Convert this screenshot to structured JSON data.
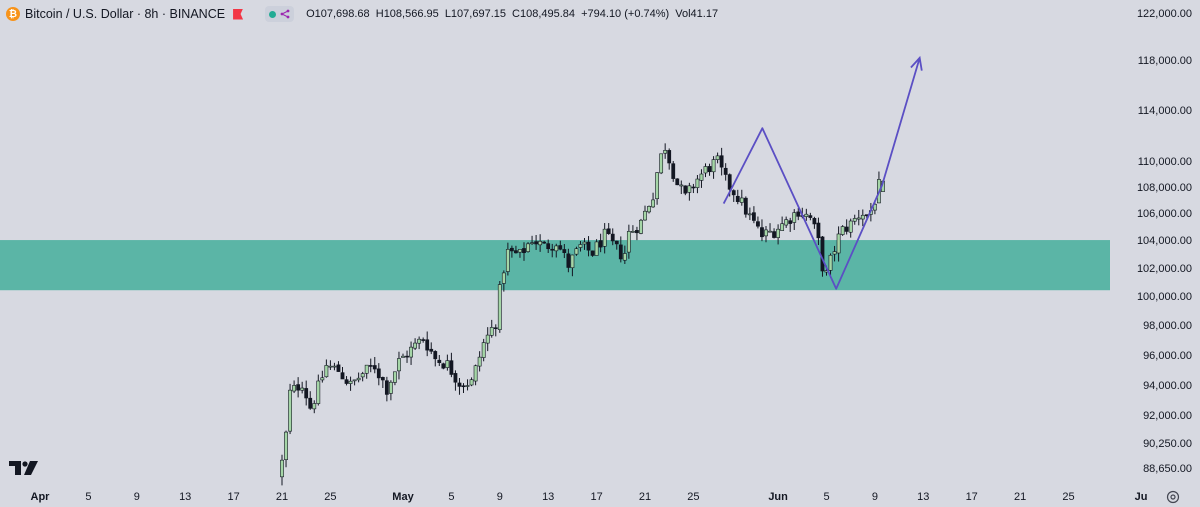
{
  "legend": {
    "symbol": "Bitcoin / U.S. Dollar · 8h · BINANCE",
    "coin_icon_text": "₿",
    "open": "O107,698.68",
    "high": "H108,566.95",
    "low": "L107,697.15",
    "close": "C108,495.84",
    "change": "+794.10 (+0.74%)",
    "volume": "Vol41.17"
  },
  "icons": {
    "coin": "bitcoin-icon",
    "flag": "flag-icon",
    "status": "status-dot-icon",
    "share": "share-icon",
    "logo": "tradingview-logo",
    "settings": "settings-icon"
  },
  "colors": {
    "background": "#d7d9e1",
    "candle_up": "#a5d6a7",
    "candle_down": "#131722",
    "zone": "#5bb5a6",
    "path": "#5b4fc4",
    "flag": "#f23645",
    "coin": "#f7931a"
  },
  "chart_data": {
    "type": "candlestick",
    "title": "Bitcoin / U.S. Dollar · 8h · BINANCE",
    "timeframe": "8h",
    "y_scale": "log",
    "ylim": [
      87600,
      123200
    ],
    "price_ticks": [
      {
        "value": 122000,
        "label": "122,000.00"
      },
      {
        "value": 118000,
        "label": "118,000.00"
      },
      {
        "value": 114000,
        "label": "114,000.00"
      },
      {
        "value": 110000,
        "label": "110,000.00"
      },
      {
        "value": 108000,
        "label": "108,000.00"
      },
      {
        "value": 106000,
        "label": "106,000.00"
      },
      {
        "value": 104000,
        "label": "104,000.00"
      },
      {
        "value": 102000,
        "label": "102,000.00"
      },
      {
        "value": 100000,
        "label": "100,000.00"
      },
      {
        "value": 98000,
        "label": "98,000.00"
      },
      {
        "value": 96000,
        "label": "96,000.00"
      },
      {
        "value": 94000,
        "label": "94,000.00"
      },
      {
        "value": 92000,
        "label": "92,000.00"
      },
      {
        "value": 90250,
        "label": "90,250.00"
      },
      {
        "value": 88650,
        "label": "88,650.00"
      }
    ],
    "time_ticks": [
      {
        "label": "Apr",
        "day": 1,
        "bold": true
      },
      {
        "label": "5",
        "day": 5
      },
      {
        "label": "9",
        "day": 9
      },
      {
        "label": "13",
        "day": 13
      },
      {
        "label": "17",
        "day": 17
      },
      {
        "label": "21",
        "day": 21
      },
      {
        "label": "25",
        "day": 25
      },
      {
        "label": "May",
        "day": 31,
        "bold": true
      },
      {
        "label": "5",
        "day": 35
      },
      {
        "label": "9",
        "day": 39
      },
      {
        "label": "13",
        "day": 43
      },
      {
        "label": "17",
        "day": 47
      },
      {
        "label": "21",
        "day": 51
      },
      {
        "label": "25",
        "day": 55
      },
      {
        "label": "Jun",
        "day": 62,
        "bold": true
      },
      {
        "label": "5",
        "day": 66
      },
      {
        "label": "9",
        "day": 70
      },
      {
        "label": "13",
        "day": 74
      },
      {
        "label": "17",
        "day": 78
      },
      {
        "label": "21",
        "day": 82
      },
      {
        "label": "25",
        "day": 86
      },
      {
        "label": "Ju",
        "day": 92,
        "bold": true
      }
    ],
    "support_zone": {
      "low": 100500,
      "high": 104100
    },
    "projection_path": [
      {
        "day": 57.5,
        "price": 106800
      },
      {
        "day": 58.3,
        "price": 108200
      },
      {
        "day": 60.7,
        "price": 112600
      },
      {
        "day": 66.8,
        "price": 100600
      },
      {
        "day": 70.6,
        "price": 108200
      },
      {
        "day": 73.7,
        "price": 118300
      }
    ],
    "candle_anchors": [
      [
        21.0,
        88200
      ],
      [
        21.5,
        89500
      ],
      [
        22.0,
        93500
      ],
      [
        23.0,
        94200
      ],
      [
        23.7,
        92500
      ],
      [
        25.0,
        95300
      ],
      [
        26.0,
        95000
      ],
      [
        27.0,
        94000
      ],
      [
        28.0,
        94800
      ],
      [
        29.0,
        95300
      ],
      [
        30.0,
        93800
      ],
      [
        31.0,
        95600
      ],
      [
        32.0,
        96400
      ],
      [
        33.0,
        97200
      ],
      [
        34.0,
        95800
      ],
      [
        35.0,
        95400
      ],
      [
        36.0,
        94200
      ],
      [
        37.0,
        94200
      ],
      [
        38.0,
        96800
      ],
      [
        39.0,
        98300
      ],
      [
        39.5,
        101500
      ],
      [
        40.0,
        103200
      ],
      [
        41.0,
        103000
      ],
      [
        42.0,
        104200
      ],
      [
        43.0,
        103600
      ],
      [
        44.0,
        104000
      ],
      [
        45.0,
        102300
      ],
      [
        46.0,
        103600
      ],
      [
        47.0,
        103200
      ],
      [
        48.0,
        104400
      ],
      [
        49.0,
        103400
      ],
      [
        49.6,
        102900
      ],
      [
        50.0,
        104600
      ],
      [
        51.0,
        105400
      ],
      [
        51.5,
        106500
      ],
      [
        52.0,
        107500
      ],
      [
        52.5,
        110000
      ],
      [
        53.0,
        111200
      ],
      [
        53.6,
        109400
      ],
      [
        54.0,
        108300
      ],
      [
        54.7,
        107200
      ],
      [
        55.5,
        108500
      ],
      [
        56.5,
        109500
      ],
      [
        57.3,
        110000
      ],
      [
        58.0,
        108500
      ],
      [
        59.0,
        107300
      ],
      [
        60.0,
        105800
      ],
      [
        61.0,
        104400
      ],
      [
        62.0,
        104800
      ],
      [
        63.0,
        105500
      ],
      [
        64.0,
        106300
      ],
      [
        65.0,
        105700
      ],
      [
        65.6,
        104300
      ],
      [
        66.2,
        101200
      ],
      [
        66.8,
        103000
      ],
      [
        67.5,
        104700
      ],
      [
        68.5,
        105400
      ],
      [
        69.2,
        106200
      ],
      [
        69.8,
        105800
      ],
      [
        70.3,
        107000
      ],
      [
        70.8,
        108500
      ]
    ],
    "last_candle": {
      "open": 107698.68,
      "high": 108566.95,
      "low": 107697.15,
      "close": 108495.84
    }
  }
}
